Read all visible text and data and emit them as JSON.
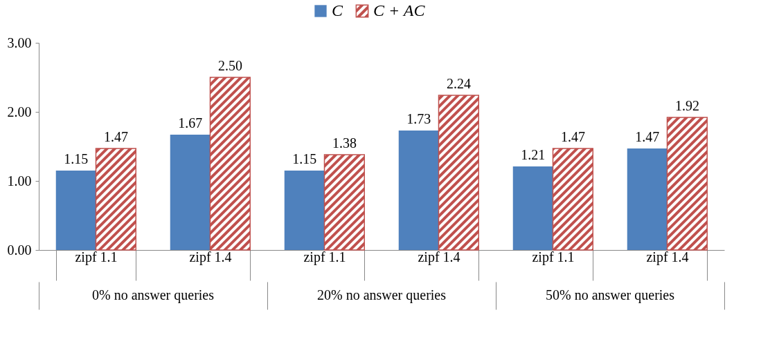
{
  "chart_data": {
    "type": "bar",
    "categories": [
      "zipf 1.1",
      "zipf 1.4",
      "zipf 1.1",
      "zipf 1.4",
      "zipf 1.1",
      "zipf 1.4"
    ],
    "series": [
      {
        "name": "C",
        "color": "#4f81bd",
        "values": [
          1.15,
          1.67,
          1.15,
          1.73,
          1.21,
          1.47
        ],
        "value_labels": [
          "1.15",
          "1.67",
          "1.15",
          "1.73",
          "1.21",
          "1.47"
        ]
      },
      {
        "name": "C + AC",
        "color": "#c0504d",
        "values": [
          1.47,
          2.5,
          1.38,
          2.24,
          1.47,
          1.92
        ],
        "value_labels": [
          "1.47",
          "2.50",
          "1.38",
          "2.24",
          "1.47",
          "1.92"
        ]
      }
    ],
    "ylim": [
      0,
      3
    ],
    "yticks": [
      {
        "value": 0,
        "label": "0.00"
      },
      {
        "value": 1,
        "label": "1.00"
      },
      {
        "value": 2,
        "label": "2.00"
      },
      {
        "value": 3,
        "label": "3.00"
      }
    ],
    "annotations": [
      "0% no answer queries",
      "20% no answer queries",
      "50% no answer queries"
    ],
    "legend": "top",
    "grid": false
  }
}
